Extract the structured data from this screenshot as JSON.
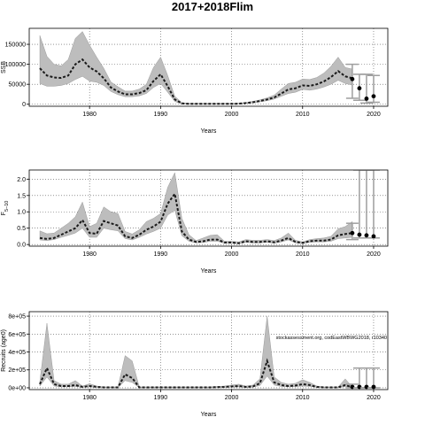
{
  "title": "2017+2018Flim",
  "colors": {
    "band": "#bdbdbd",
    "band_edge": "#8c8c8c",
    "line": "#1a1a1a",
    "grid": "#555555",
    "frame": "#000000",
    "future": "#9e9e9e"
  },
  "chart_data": [
    {
      "type": "area",
      "name": "ssb",
      "xlabel": "Years",
      "ylabel": "SSB",
      "xlim": [
        1971.5,
        2022
      ],
      "ylim": [
        -5000,
        190000
      ],
      "xticks": [
        1980,
        1990,
        2000,
        2010,
        2020
      ],
      "xtick_labels": [
        "1980",
        "1990",
        "2000",
        "2010",
        "2020"
      ],
      "yticks": [
        0,
        50000,
        100000,
        150000
      ],
      "ytick_labels": [
        "0",
        "50000",
        "100000",
        "150000"
      ],
      "grid": true,
      "x": [
        1973,
        1974,
        1975,
        1976,
        1977,
        1978,
        1979,
        1980,
        1981,
        1982,
        1983,
        1984,
        1985,
        1986,
        1987,
        1988,
        1989,
        1990,
        1991,
        1992,
        1993,
        1994,
        1995,
        1996,
        1997,
        1998,
        1999,
        2000,
        2001,
        2002,
        2003,
        2004,
        2005,
        2006,
        2007,
        2008,
        2009,
        2010,
        2011,
        2012,
        2013,
        2014,
        2015,
        2016,
        2017
      ],
      "estimate": [
        90000,
        72000,
        67000,
        66000,
        72000,
        100000,
        112000,
        92000,
        82000,
        65000,
        42000,
        32000,
        25000,
        25000,
        28000,
        35000,
        58000,
        75000,
        45000,
        12000,
        2000,
        1000,
        1000,
        1000,
        1000,
        1000,
        1000,
        1000,
        1500,
        3000,
        5000,
        8000,
        12000,
        17000,
        27000,
        37000,
        40000,
        47000,
        46000,
        50000,
        57000,
        68000,
        83000,
        70000,
        65000
      ],
      "lower": [
        52000,
        45000,
        45000,
        47000,
        52000,
        62000,
        70000,
        58000,
        55000,
        47000,
        32000,
        24000,
        19000,
        19000,
        21000,
        27000,
        42000,
        52000,
        30000,
        7000,
        1000,
        500,
        500,
        500,
        500,
        500,
        500,
        500,
        1000,
        2000,
        3500,
        6000,
        9000,
        13000,
        20000,
        27000,
        30000,
        37000,
        35000,
        38000,
        43000,
        50000,
        60000,
        52000,
        48000
      ],
      "upper": [
        172000,
        120000,
        100000,
        96000,
        112000,
        165000,
        182000,
        148000,
        118000,
        90000,
        56000,
        44000,
        33000,
        33000,
        38000,
        50000,
        92000,
        118000,
        72000,
        20000,
        4000,
        2000,
        2000,
        2000,
        2000,
        2000,
        2000,
        2000,
        2500,
        4500,
        7500,
        11000,
        16000,
        23000,
        38000,
        52000,
        55000,
        63000,
        62000,
        67000,
        78000,
        95000,
        118000,
        92000,
        88000
      ],
      "future": [
        {
          "year": 2017,
          "value": 63000,
          "low": 15000,
          "high": 100000
        },
        {
          "year": 2018,
          "value": 40000,
          "low": 10000,
          "high": 75000
        },
        {
          "year": 2019,
          "value": 14000,
          "low": 3000,
          "high": 75000
        },
        {
          "year": 2020,
          "value": 20000,
          "low": 5000,
          "high": 72000
        }
      ]
    },
    {
      "type": "area",
      "name": "f",
      "xlabel": "Years",
      "ylabel": "F",
      "ylabel_sub": "5−10",
      "xlim": [
        1971.5,
        2022
      ],
      "ylim": [
        -0.05,
        2.28
      ],
      "xticks": [
        1980,
        1990,
        2000,
        2010,
        2020
      ],
      "xtick_labels": [
        "1980",
        "1990",
        "2000",
        "2010",
        "2020"
      ],
      "yticks": [
        0,
        0.5,
        1.0,
        1.5,
        2.0
      ],
      "ytick_labels": [
        "0.0",
        "0.5",
        "1.0",
        "1.5",
        "2.0"
      ],
      "grid": true,
      "x": [
        1973,
        1974,
        1975,
        1976,
        1977,
        1978,
        1979,
        1980,
        1981,
        1982,
        1983,
        1984,
        1985,
        1986,
        1987,
        1988,
        1989,
        1990,
        1991,
        1992,
        1993,
        1994,
        1995,
        1996,
        1997,
        1998,
        1999,
        2000,
        2001,
        2002,
        2003,
        2004,
        2005,
        2006,
        2007,
        2008,
        2009,
        2010,
        2011,
        2012,
        2013,
        2014,
        2015,
        2016,
        2017
      ],
      "estimate": [
        0.2,
        0.17,
        0.2,
        0.3,
        0.4,
        0.5,
        0.75,
        0.35,
        0.33,
        0.72,
        0.65,
        0.58,
        0.25,
        0.2,
        0.3,
        0.45,
        0.55,
        0.7,
        1.25,
        1.55,
        0.4,
        0.15,
        0.08,
        0.1,
        0.15,
        0.15,
        0.06,
        0.06,
        0.04,
        0.1,
        0.08,
        0.08,
        0.1,
        0.07,
        0.12,
        0.2,
        0.08,
        0.05,
        0.1,
        0.12,
        0.12,
        0.15,
        0.28,
        0.32,
        0.35
      ],
      "lower": [
        0.14,
        0.12,
        0.15,
        0.22,
        0.28,
        0.35,
        0.5,
        0.22,
        0.22,
        0.5,
        0.45,
        0.42,
        0.18,
        0.14,
        0.22,
        0.32,
        0.4,
        0.5,
        0.9,
        1.05,
        0.27,
        0.1,
        0.05,
        0.06,
        0.1,
        0.1,
        0.04,
        0.04,
        0.02,
        0.07,
        0.05,
        0.05,
        0.07,
        0.04,
        0.08,
        0.14,
        0.05,
        0.03,
        0.07,
        0.08,
        0.08,
        0.1,
        0.18,
        0.2,
        0.22
      ],
      "upper": [
        0.42,
        0.33,
        0.35,
        0.5,
        0.65,
        0.85,
        1.3,
        0.55,
        0.65,
        1.15,
        1.0,
        0.95,
        0.4,
        0.32,
        0.45,
        0.7,
        0.8,
        0.95,
        1.75,
        2.2,
        0.8,
        0.3,
        0.12,
        0.2,
        0.28,
        0.3,
        0.1,
        0.1,
        0.08,
        0.15,
        0.13,
        0.13,
        0.15,
        0.12,
        0.2,
        0.35,
        0.13,
        0.08,
        0.15,
        0.18,
        0.2,
        0.25,
        0.48,
        0.55,
        0.7
      ],
      "future": [
        {
          "year": 2017,
          "value": 0.35,
          "low": 0.15,
          "high": 0.65
        },
        {
          "year": 2018,
          "value": 0.3,
          "low": 0.2,
          "high": 2.28
        },
        {
          "year": 2019,
          "value": 0.28,
          "low": 0.2,
          "high": 2.28
        },
        {
          "year": 2020,
          "value": 0.25,
          "low": 0.2,
          "high": 2.28
        }
      ]
    },
    {
      "type": "area",
      "name": "recruits",
      "xlabel": "Years",
      "ylabel": "Recruits (age0)",
      "xlim": [
        1971.5,
        2022
      ],
      "ylim": [
        -20000,
        850000
      ],
      "xticks": [
        1980,
        1990,
        2000,
        2010,
        2020
      ],
      "xtick_labels": [
        "1980",
        "1990",
        "2000",
        "2010",
        "2020"
      ],
      "yticks": [
        0,
        200000,
        400000,
        600000,
        800000
      ],
      "ytick_labels": [
        "0e+00",
        "2e+05",
        "4e+05",
        "6e+05",
        "8e+05"
      ],
      "grid": true,
      "annotation": "stockassessment.org, codEastWBWG2018, r10340",
      "x": [
        1973,
        1974,
        1975,
        1976,
        1977,
        1978,
        1979,
        1980,
        1981,
        1982,
        1983,
        1984,
        1985,
        1986,
        1987,
        1988,
        1989,
        1990,
        1991,
        1992,
        1993,
        1994,
        1995,
        1996,
        1997,
        1998,
        1999,
        2000,
        2001,
        2002,
        2003,
        2004,
        2005,
        2006,
        2007,
        2008,
        2009,
        2010,
        2011,
        2012,
        2013,
        2014,
        2015,
        2016,
        2017
      ],
      "estimate": [
        40000,
        220000,
        40000,
        20000,
        20000,
        30000,
        10000,
        20000,
        10000,
        5000,
        5000,
        5000,
        150000,
        110000,
        5000,
        5000,
        5000,
        5000,
        5000,
        5000,
        5000,
        5000,
        5000,
        5000,
        5000,
        8000,
        10000,
        15000,
        20000,
        10000,
        15000,
        50000,
        300000,
        60000,
        30000,
        20000,
        25000,
        40000,
        30000,
        10000,
        5000,
        5000,
        5000,
        30000,
        5000
      ],
      "lower": [
        20000,
        120000,
        20000,
        10000,
        10000,
        15000,
        5000,
        10000,
        5000,
        2000,
        2000,
        2000,
        80000,
        60000,
        2000,
        2000,
        2000,
        2000,
        2000,
        2000,
        2000,
        2000,
        2000,
        2000,
        2000,
        4000,
        5000,
        8000,
        10000,
        5000,
        8000,
        25000,
        130000,
        30000,
        15000,
        10000,
        12000,
        20000,
        15000,
        5000,
        2000,
        2000,
        2000,
        15000,
        2000
      ],
      "upper": [
        70000,
        720000,
        80000,
        40000,
        40000,
        80000,
        20000,
        45000,
        20000,
        10000,
        10000,
        10000,
        360000,
        300000,
        10000,
        10000,
        10000,
        10000,
        10000,
        10000,
        10000,
        10000,
        10000,
        10000,
        10000,
        15000,
        20000,
        30000,
        40000,
        20000,
        30000,
        100000,
        800000,
        120000,
        60000,
        40000,
        50000,
        90000,
        60000,
        20000,
        10000,
        10000,
        10000,
        100000,
        10000
      ],
      "future": [
        {
          "year": 2017,
          "value": 10000,
          "low": 0,
          "high": 40000
        },
        {
          "year": 2018,
          "value": 10000,
          "low": 0,
          "high": 220000
        },
        {
          "year": 2019,
          "value": 10000,
          "low": 0,
          "high": 220000
        },
        {
          "year": 2020,
          "value": 10000,
          "low": 0,
          "high": 220000
        }
      ]
    }
  ]
}
